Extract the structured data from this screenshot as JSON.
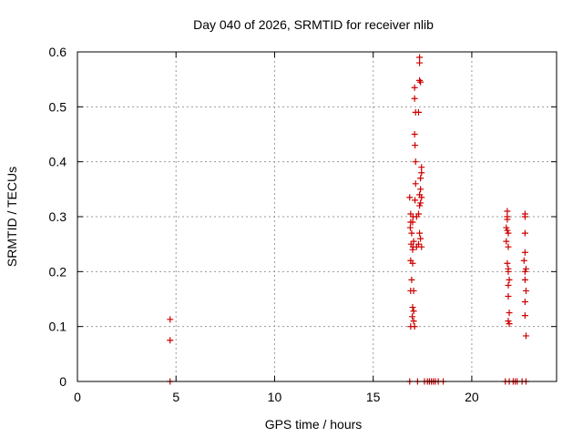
{
  "chart_data": {
    "type": "scatter",
    "title": "Day 040 of 2026, SRMTID for receiver nlib",
    "xlabel": "GPS time / hours",
    "ylabel": "SRMTID / TECUs",
    "xlim": [
      0,
      24.3
    ],
    "ylim": [
      0,
      0.6
    ],
    "grid": true,
    "x_ticks": [
      0,
      5,
      10,
      15,
      20
    ],
    "x_tick_labels": [
      "0",
      "5",
      "10",
      "15",
      "20"
    ],
    "y_ticks": [
      0,
      0.1,
      0.2,
      0.3,
      0.4,
      0.5,
      0.6
    ],
    "y_tick_labels": [
      "0",
      "0.1",
      "0.2",
      "0.3",
      "0.4",
      "0.5",
      "0.6"
    ],
    "colors": {
      "points": "#cc0000",
      "grid": "#999999",
      "axes": "#000000"
    },
    "series": [
      {
        "name": "SRMTID",
        "marker": "plus",
        "points": [
          [
            4.7,
            0.113
          ],
          [
            4.7,
            0.075
          ],
          [
            4.7,
            0.0
          ],
          [
            16.85,
            0.335
          ],
          [
            16.9,
            0.305
          ],
          [
            16.9,
            0.29
          ],
          [
            16.88,
            0.28
          ],
          [
            16.95,
            0.27
          ],
          [
            16.92,
            0.25
          ],
          [
            17.0,
            0.24
          ],
          [
            16.9,
            0.22
          ],
          [
            17.0,
            0.215
          ],
          [
            16.95,
            0.185
          ],
          [
            16.9,
            0.165
          ],
          [
            17.05,
            0.165
          ],
          [
            17.0,
            0.135
          ],
          [
            17.05,
            0.128
          ],
          [
            16.98,
            0.118
          ],
          [
            17.05,
            0.11
          ],
          [
            17.1,
            0.1
          ],
          [
            16.9,
            0.1
          ],
          [
            17.02,
            0.3
          ],
          [
            17.05,
            0.255
          ],
          [
            17.02,
            0.245
          ],
          [
            17.0,
            0.29
          ],
          [
            17.1,
            0.535
          ],
          [
            17.1,
            0.515
          ],
          [
            17.15,
            0.49
          ],
          [
            17.1,
            0.45
          ],
          [
            17.12,
            0.43
          ],
          [
            17.15,
            0.4
          ],
          [
            17.15,
            0.36
          ],
          [
            17.12,
            0.33
          ],
          [
            17.2,
            0.245
          ],
          [
            17.2,
            0.3
          ],
          [
            17.35,
            0.59
          ],
          [
            17.35,
            0.58
          ],
          [
            17.35,
            0.548
          ],
          [
            17.4,
            0.545
          ],
          [
            17.3,
            0.49
          ],
          [
            17.45,
            0.39
          ],
          [
            17.45,
            0.38
          ],
          [
            17.4,
            0.37
          ],
          [
            17.4,
            0.35
          ],
          [
            17.35,
            0.34
          ],
          [
            17.45,
            0.335
          ],
          [
            17.4,
            0.325
          ],
          [
            17.35,
            0.32
          ],
          [
            17.3,
            0.305
          ],
          [
            17.35,
            0.27
          ],
          [
            17.4,
            0.26
          ],
          [
            17.3,
            0.25
          ],
          [
            17.45,
            0.245
          ],
          [
            16.85,
            0.0
          ],
          [
            17.25,
            0.0
          ],
          [
            17.6,
            0.0
          ],
          [
            17.75,
            0.0
          ],
          [
            17.85,
            0.0
          ],
          [
            17.95,
            0.0
          ],
          [
            18.05,
            0.0
          ],
          [
            18.15,
            0.0
          ],
          [
            18.3,
            0.0
          ],
          [
            18.55,
            0.0
          ],
          [
            21.8,
            0.31
          ],
          [
            21.8,
            0.295
          ],
          [
            21.75,
            0.28
          ],
          [
            21.8,
            0.275
          ],
          [
            21.85,
            0.27
          ],
          [
            21.75,
            0.255
          ],
          [
            21.85,
            0.245
          ],
          [
            21.8,
            0.215
          ],
          [
            21.85,
            0.205
          ],
          [
            21.85,
            0.2
          ],
          [
            21.9,
            0.185
          ],
          [
            21.85,
            0.175
          ],
          [
            21.85,
            0.155
          ],
          [
            21.9,
            0.125
          ],
          [
            21.85,
            0.11
          ],
          [
            21.9,
            0.105
          ],
          [
            21.8,
            0.3
          ],
          [
            22.7,
            0.305
          ],
          [
            22.7,
            0.3
          ],
          [
            22.7,
            0.27
          ],
          [
            22.7,
            0.235
          ],
          [
            22.65,
            0.22
          ],
          [
            22.75,
            0.205
          ],
          [
            22.7,
            0.2
          ],
          [
            22.7,
            0.185
          ],
          [
            22.75,
            0.165
          ],
          [
            22.7,
            0.145
          ],
          [
            22.7,
            0.12
          ],
          [
            22.75,
            0.083
          ],
          [
            21.7,
            0.0
          ],
          [
            21.9,
            0.0
          ],
          [
            22.1,
            0.0
          ],
          [
            22.2,
            0.0
          ],
          [
            22.3,
            0.0
          ],
          [
            22.55,
            0.0
          ],
          [
            22.75,
            0.0
          ]
        ]
      }
    ]
  }
}
